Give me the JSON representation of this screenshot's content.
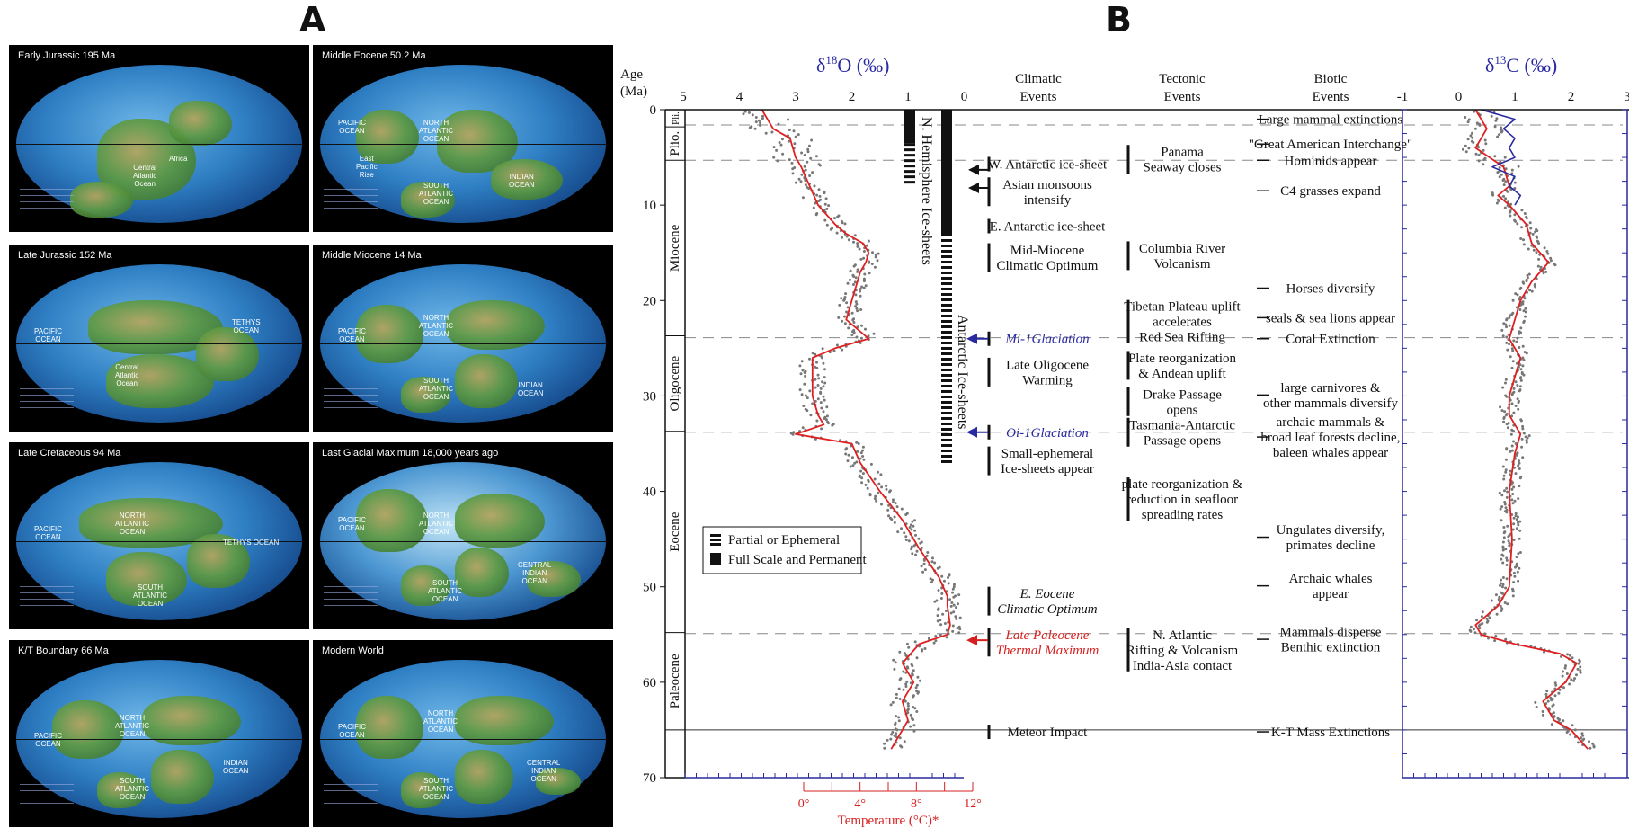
{
  "panel_a": {
    "letter": "A",
    "maps": [
      {
        "title": "Early Jurassic      195 Ma",
        "labels": [
          "Central\nAtlantic\nOcean",
          "Africa"
        ]
      },
      {
        "title": "Middle Eocene   50.2 Ma",
        "labels": [
          "PACIFIC\nOCEAN",
          "NORTH\nATLANTIC\nOCEAN",
          "SOUTH\nATLANTIC\nOCEAN",
          "INDIAN\nOCEAN",
          "East\nPacific\nRise"
        ]
      },
      {
        "title": "Late Jurassic      152 Ma",
        "labels": [
          "PACIFIC\nOCEAN",
          "TETHYS\nOCEAN",
          "Central\nAtlantic\nOcean"
        ]
      },
      {
        "title": "Middle Miocene   14 Ma",
        "labels": [
          "PACIFIC\nOCEAN",
          "NORTH\nATLANTIC\nOCEAN",
          "SOUTH\nATLANTIC\nOCEAN",
          "INDIAN\nOCEAN"
        ]
      },
      {
        "title": "Late Cretaceous     94 Ma",
        "labels": [
          "PACIFIC\nOCEAN",
          "NORTH\nATLANTIC\nOCEAN",
          "TETHYS OCEAN",
          "SOUTH\nATLANTIC\nOCEAN"
        ]
      },
      {
        "title": "Last Glacial Maximum   18,000 years ago",
        "labels": [
          "PACIFIC\nOCEAN",
          "NORTH\nATLANTIC\nOCEAN",
          "SOUTH\nATLANTIC\nOCEAN",
          "CENTRAL\nINDIAN\nOCEAN"
        ]
      },
      {
        "title": "K/T Boundary 66 Ma",
        "labels": [
          "PACIFIC\nOCEAN",
          "NORTH\nATLANTIC\nOCEAN",
          "SOUTH\nATLANTIC\nOCEAN",
          "INDIAN\nOCEAN"
        ]
      },
      {
        "title": "Modern World",
        "labels": [
          "PACIFIC\nOCEAN",
          "NORTH\nATLANTIC\nOCEAN",
          "SOUTH\nATLANTIC\nOCEAN",
          "CENTRAL\nINDIAN\nOCEAN"
        ]
      }
    ]
  },
  "panel_b": {
    "letter": "B",
    "age_label_1": "Age",
    "age_label_2": "(Ma)",
    "d18o_title_base": "δ",
    "d18o_title_sup": "18",
    "d18o_title_rest": "O (‰)",
    "d13c_title_base": "δ",
    "d13c_title_sup": "13",
    "d13c_title_rest": "C (‰)",
    "temp_label": "Temperature (°C)*",
    "col_heads": [
      [
        "Climatic",
        "Events"
      ],
      [
        "Tectonic",
        "Events"
      ],
      [
        "Biotic",
        "Events"
      ]
    ],
    "epochs": [
      "Pli.",
      "Plio.",
      "Miocene",
      "Oligocene",
      "Eocene",
      "Paleocene"
    ],
    "ice_sheet_labels": {
      "north": "N. Hemisphere Ice-sheets",
      "antarctic": "Antarctic Ice-sheets"
    },
    "legend": {
      "partial": "Partial or Ephemeral",
      "full": "Full Scale and Permanent"
    },
    "climatic_events": [
      {
        "lines": [
          "W. Antarctic ice-sheet"
        ],
        "age": 5.7,
        "color": "#111",
        "italic": false
      },
      {
        "lines": [
          "Asian monsoons",
          "intensify"
        ],
        "age": 8.6,
        "color": "#111",
        "italic": false
      },
      {
        "lines": [
          "E. Antarctic ice-sheet"
        ],
        "age": 12.2,
        "color": "#111",
        "italic": false
      },
      {
        "lines": [
          "Mid-Miocene",
          "Climatic Optimum"
        ],
        "age": 15.5,
        "color": "#111",
        "italic": false
      },
      {
        "lines": [
          "Mi-1Glaciation"
        ],
        "age": 24,
        "color": "#2a2aa0",
        "italic": true
      },
      {
        "lines": [
          "Late Oligocene",
          "Warming"
        ],
        "age": 27.5,
        "color": "#111",
        "italic": false
      },
      {
        "lines": [
          "Oi-1Glaciation"
        ],
        "age": 33.8,
        "color": "#2a2aa0",
        "italic": true
      },
      {
        "lines": [
          "Small-ephemeral",
          "Ice-sheets appear"
        ],
        "age": 36.8,
        "color": "#111",
        "italic": false
      },
      {
        "lines": [
          "E. Eocene",
          "Climatic Optimum"
        ],
        "age": 51.5,
        "color": "#111",
        "italic": true
      },
      {
        "lines": [
          "Late Paleocene",
          "Thermal Maximum"
        ],
        "age": 55.8,
        "color": "#d62020",
        "italic": true
      },
      {
        "lines": [
          "Meteor Impact"
        ],
        "age": 65.2,
        "color": "#111",
        "italic": false
      }
    ],
    "tectonic_events": [
      {
        "lines": [
          "Panama",
          "Seaway closes"
        ],
        "age": 5.2
      },
      {
        "lines": [
          "Columbia River",
          "Volcanism"
        ],
        "age": 15.3
      },
      {
        "lines": [
          "Tibetan Plateau uplift",
          "accelerates",
          "Red Sea Rifting"
        ],
        "age": 22.2
      },
      {
        "lines": [
          "Plate reorganization",
          "& Andean uplift"
        ],
        "age": 26.8
      },
      {
        "lines": [
          "Drake Passage",
          "opens"
        ],
        "age": 30.6
      },
      {
        "lines": [
          "Tasmania-Antarctic",
          "Passage opens"
        ],
        "age": 33.8
      },
      {
        "lines": [
          "plate reorganization &",
          "reduction in seafloor",
          "spreading rates"
        ],
        "age": 40.8
      },
      {
        "lines": [
          "N. Atlantic",
          "Rifting & Volcanism",
          "India-Asia contact"
        ],
        "age": 56.6
      }
    ],
    "biotic_events": [
      {
        "lines": [
          "Large mammal extinctions"
        ],
        "age": 1.0
      },
      {
        "lines": [
          "\"Great American Interchange\""
        ],
        "age": 3.6
      },
      {
        "lines": [
          "Hominids appear"
        ],
        "age": 5.3
      },
      {
        "lines": [
          "C4 grasses expand"
        ],
        "age": 8.5
      },
      {
        "lines": [
          "Horses diversify"
        ],
        "age": 18.7
      },
      {
        "lines": [
          "seals & sea lions appear"
        ],
        "age": 21.8
      },
      {
        "lines": [
          "Coral Extinction"
        ],
        "age": 24.0
      },
      {
        "lines": [
          "large carnivores &",
          "other mammals diversify"
        ],
        "age": 29.9
      },
      {
        "lines": [
          "archaic mammals &",
          "broad leaf forests decline,",
          "baleen whales appear"
        ],
        "age": 34.3
      },
      {
        "lines": [
          "Ungulates diversify,",
          "primates decline"
        ],
        "age": 44.8
      },
      {
        "lines": [
          "Archaic whales",
          "appear"
        ],
        "age": 49.9
      },
      {
        "lines": [
          "Mammals disperse",
          "Benthic extinction"
        ],
        "age": 55.5
      },
      {
        "lines": [
          "K-T Mass Extinctions"
        ],
        "age": 65.2
      }
    ]
  },
  "chart_data": {
    "type": "line",
    "yaxis": {
      "label": "Age (Ma)",
      "range": [
        0,
        70
      ],
      "ticks": [
        0,
        10,
        20,
        30,
        40,
        50,
        60,
        70
      ],
      "reversed": true
    },
    "d18o_axis": {
      "range": [
        5,
        -0.5
      ],
      "ticks": [
        5,
        4,
        3,
        2,
        1,
        0
      ]
    },
    "d13c_axis": {
      "range": [
        -1,
        3
      ],
      "ticks": [
        -1,
        0,
        1,
        2,
        3
      ]
    },
    "temperature_ticks": [
      "0°",
      "4°",
      "8°",
      "12°"
    ],
    "temperature_values": [
      0,
      4,
      8,
      12
    ],
    "epoch_boundaries": [
      0,
      1.8,
      5.3,
      23.7,
      33.7,
      54.8,
      65,
      70
    ],
    "dashed_lines_ma": [
      1.6,
      5.3,
      23.9,
      33.8,
      54.9
    ],
    "solid_line_ma": 65.0,
    "d18o_fit": {
      "age": [
        0,
        2,
        3,
        5,
        6,
        8,
        10,
        12,
        13,
        14,
        15,
        16,
        17,
        18,
        20,
        22,
        24,
        25,
        26,
        28,
        30,
        32,
        33,
        34,
        35,
        37,
        40,
        43,
        46,
        49,
        51,
        52,
        54,
        55,
        56,
        58,
        60,
        62,
        64,
        65,
        67
      ],
      "value": [
        3.6,
        3.4,
        3.1,
        3.0,
        2.9,
        2.75,
        2.6,
        2.3,
        2.1,
        1.8,
        1.7,
        1.75,
        1.85,
        1.9,
        2.0,
        2.1,
        1.7,
        2.3,
        2.7,
        2.7,
        2.7,
        2.6,
        2.5,
        3.0,
        2.0,
        1.85,
        1.5,
        1.1,
        0.8,
        0.45,
        0.3,
        0.3,
        0.25,
        0.3,
        0.8,
        1.1,
        0.9,
        1.1,
        1.0,
        1.1,
        1.3
      ]
    },
    "d13c_fit": {
      "age": [
        0,
        2,
        4,
        6,
        8,
        9,
        10,
        12,
        14,
        16,
        18,
        20,
        22,
        24,
        26,
        28,
        30,
        32,
        34,
        36,
        40,
        45,
        50,
        52,
        53,
        54,
        55,
        56,
        57,
        58,
        60,
        62,
        64,
        65,
        67
      ],
      "value": [
        0.3,
        0.5,
        0.3,
        0.8,
        0.9,
        0.7,
        0.9,
        1.2,
        1.3,
        1.6,
        1.3,
        1.1,
        1.0,
        0.9,
        1.1,
        1.0,
        0.9,
        0.9,
        1.1,
        1.0,
        0.9,
        0.95,
        0.9,
        0.7,
        0.5,
        0.3,
        0.4,
        1.0,
        1.8,
        2.1,
        1.9,
        1.5,
        1.7,
        2.0,
        2.3
      ]
    },
    "d13c_blue_curve": {
      "age": [
        0,
        1,
        2,
        3,
        4,
        5,
        6,
        7,
        8,
        9,
        10
      ],
      "value": [
        0.4,
        1.0,
        0.8,
        1.0,
        0.9,
        1.0,
        0.6,
        1.0,
        0.9,
        1.1,
        1.0
      ]
    },
    "ice_sheets": {
      "north_hemisphere": {
        "partial_ma": [
          3.5,
          7.8
        ],
        "full_ma": [
          0,
          3.5
        ]
      },
      "antarctic": {
        "full_ma": [
          0,
          13
        ],
        "partial_ma": [
          13,
          37
        ]
      }
    }
  }
}
